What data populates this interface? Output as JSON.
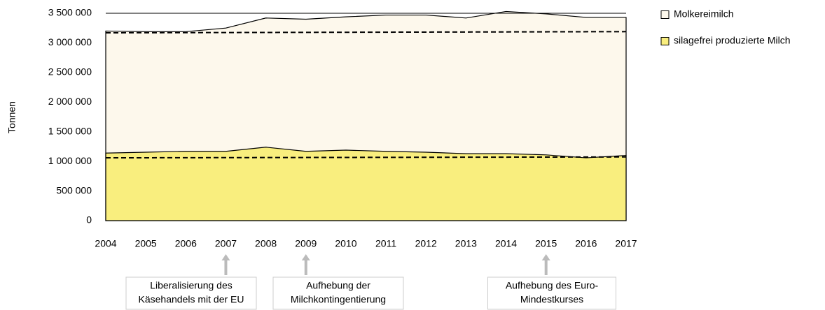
{
  "chart_data": {
    "type": "area",
    "y_label": "Tonnen",
    "x": [
      2004,
      2005,
      2006,
      2007,
      2008,
      2009,
      2010,
      2011,
      2012,
      2013,
      2014,
      2015,
      2016,
      2017
    ],
    "xlim": [
      2004,
      2017
    ],
    "xticks": [
      2004,
      2005,
      2006,
      2007,
      2008,
      2009,
      2010,
      2011,
      2012,
      2013,
      2014,
      2015,
      2016,
      2017
    ],
    "ylim": [
      0,
      3500000
    ],
    "yticks": [
      0,
      {
        "value": 500000,
        "label": "500 000"
      },
      {
        "value": 1000000,
        "label": "1 000 000"
      },
      {
        "value": 1500000,
        "label": "1 500 000"
      },
      {
        "value": 2000000,
        "label": "2 000 000"
      },
      {
        "value": 2500000,
        "label": "2 500 000"
      },
      {
        "value": 3000000,
        "label": "3 000 000"
      },
      {
        "value": 3500000,
        "label": "3 500 000"
      }
    ],
    "series": [
      {
        "name": "Molkereimilch",
        "color": "#fdf8ec",
        "values": [
          3200000,
          3190000,
          3190000,
          3250000,
          3420000,
          3400000,
          3440000,
          3470000,
          3470000,
          3420000,
          3530000,
          3490000,
          3430000,
          3430000
        ]
      },
      {
        "name": "silagefrei produzierte Milch",
        "color": "#f9ee7e",
        "values": [
          1140000,
          1155000,
          1170000,
          1170000,
          1240000,
          1170000,
          1190000,
          1170000,
          1155000,
          1130000,
          1130000,
          1110000,
          1060000,
          1100000
        ]
      }
    ],
    "trend_lines": [
      {
        "x": [
          2004,
          2017
        ],
        "values": [
          3170000,
          3190000
        ]
      },
      {
        "x": [
          2004,
          2017
        ],
        "values": [
          1060000,
          1075000
        ]
      }
    ],
    "annotations": [
      {
        "x": 2007,
        "lines": [
          "Liberalisierung des",
          "Käsehandels mit der EU"
        ]
      },
      {
        "x": 2009,
        "lines": [
          "Aufhebung der",
          "Milchkontingentierung"
        ]
      },
      {
        "x": 2015,
        "lines": [
          "Aufhebung des Euro-",
          "Mindestkurses"
        ]
      }
    ]
  }
}
